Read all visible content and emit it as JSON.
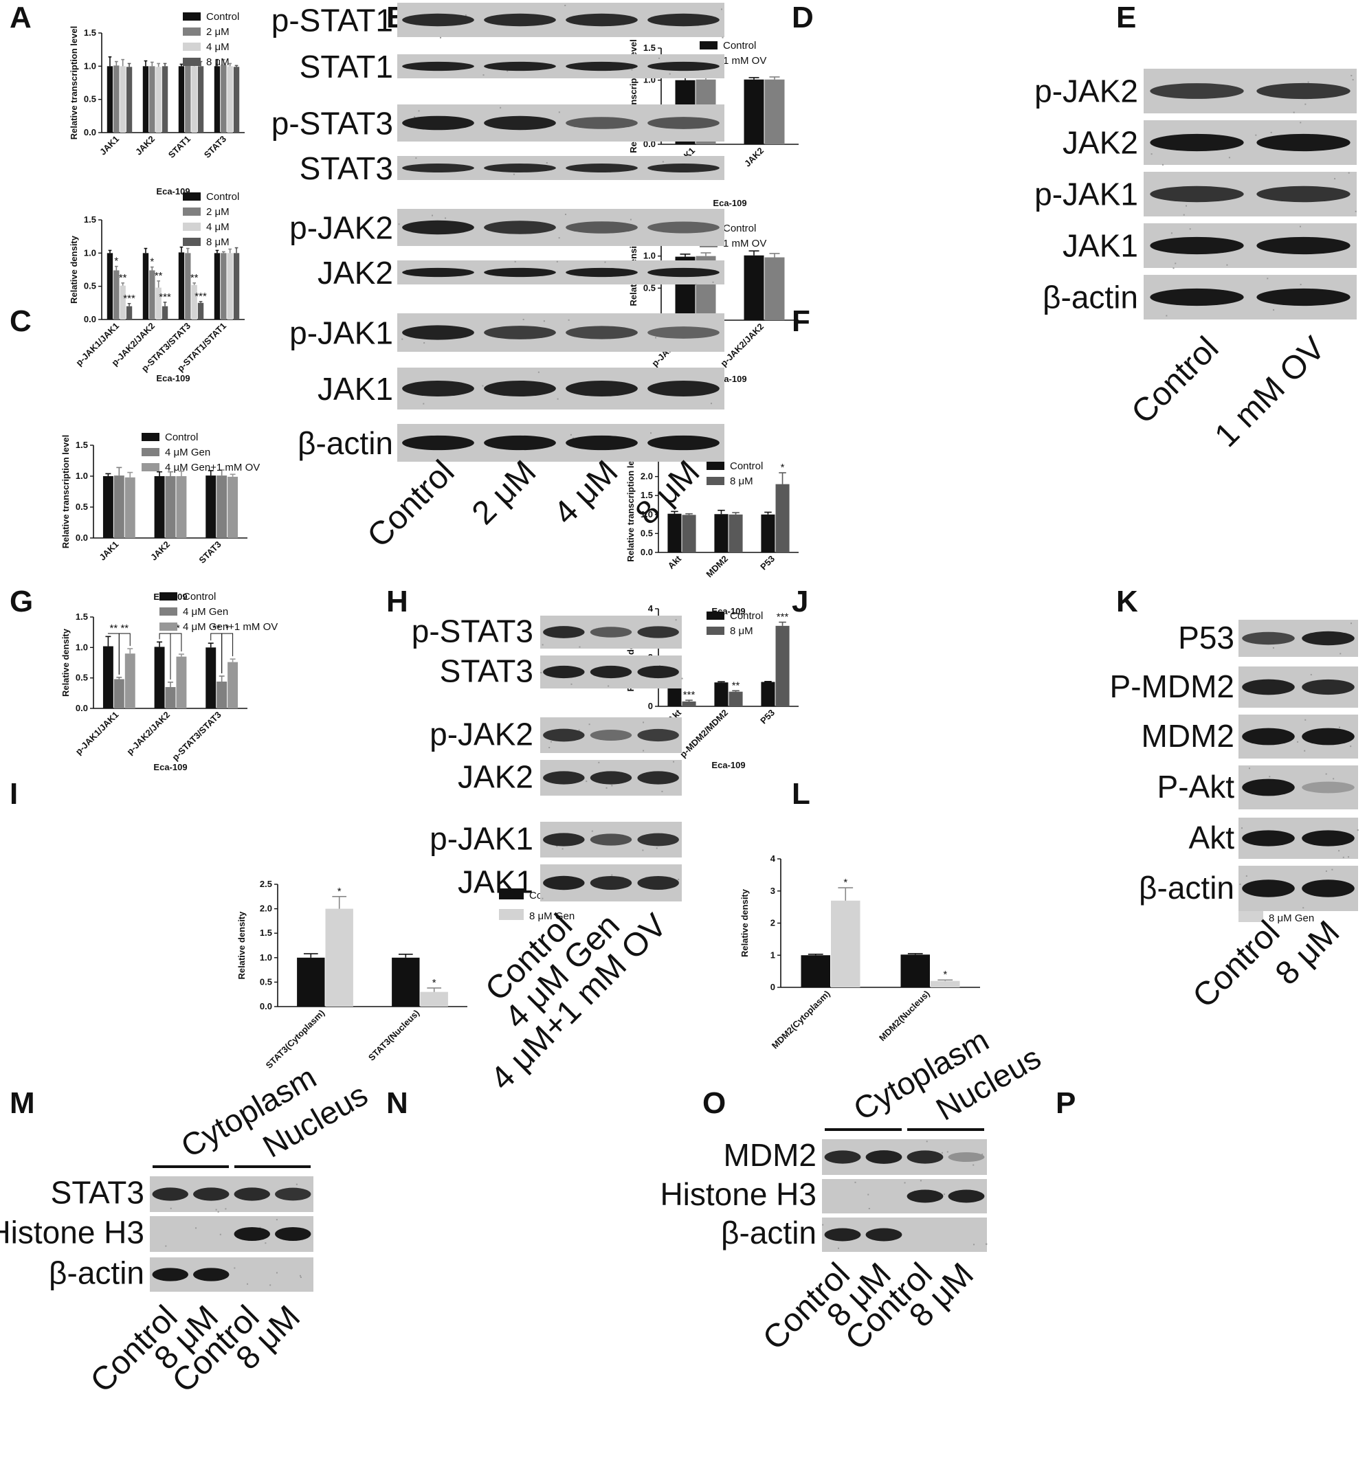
{
  "panels": {
    "A": "A",
    "B": "B",
    "C": "C",
    "D": "D",
    "E": "E",
    "F": "F",
    "G": "G",
    "H": "H",
    "I": "I",
    "J": "J",
    "K": "K",
    "L": "L",
    "M": "M",
    "N": "N",
    "O": "O",
    "P": "P"
  },
  "blots": {
    "B": {
      "bands": [
        "p-STAT1",
        "STAT1",
        "p-STAT3",
        "STAT3",
        "p-JAK2",
        "JAK2",
        "p-JAK1",
        "JAK1",
        "β-actin"
      ],
      "lanes": [
        "Control",
        "2 μM",
        "4 μM",
        "8 μM"
      ]
    },
    "E": {
      "bands": [
        "p-JAK2",
        "JAK2",
        "p-JAK1",
        "JAK1",
        "β-actin"
      ],
      "lanes": [
        "Control",
        "1 mM OV"
      ]
    },
    "H": {
      "bands": [
        "p-STAT3",
        "STAT3",
        "p-JAK2",
        "JAK2",
        "p-JAK1",
        "JAK1"
      ],
      "lanes": [
        "Control",
        "4 μM Gen",
        "4 μM+1 mM OV"
      ]
    },
    "K": {
      "bands": [
        "P53",
        "P-MDM2",
        "MDM2",
        "P-Akt",
        "Akt",
        "β-actin"
      ],
      "lanes": [
        "Control",
        "8 μM"
      ]
    },
    "M": {
      "groups": [
        "Cytoplasm",
        "Nucleus"
      ],
      "bands": [
        "STAT3",
        "Histone H3",
        "β-actin"
      ],
      "lanes": [
        "Control",
        "8 μM",
        "Control",
        "8 μM"
      ]
    },
    "O": {
      "groups": [
        "Cytoplasm",
        "Nucleus"
      ],
      "bands": [
        "MDM2",
        "Histone H3",
        "β-actin"
      ],
      "lanes": [
        "Control",
        "8 μM",
        "Control",
        "8 μM"
      ]
    }
  },
  "chart_data": [
    {
      "panel": "A",
      "type": "bar",
      "xlabel": "Eca-109",
      "ylabel": "Relative transcription level",
      "ylim": [
        0,
        1.5
      ],
      "yticks": [
        "0.0",
        "0.5",
        "1.0",
        "1.5"
      ],
      "categories": [
        "JAK1",
        "JAK2",
        "STAT1",
        "STAT3"
      ],
      "series": [
        {
          "name": "Control",
          "color": "#111111",
          "values": [
            1.0,
            1.0,
            1.0,
            1.0
          ],
          "err": [
            0.14,
            0.08,
            0.03,
            0.1
          ]
        },
        {
          "name": "2 μM",
          "color": "#808080",
          "values": [
            1.01,
            1.0,
            1.01,
            1.02
          ],
          "err": [
            0.06,
            0.06,
            0.05,
            0.08
          ]
        },
        {
          "name": "4 μM",
          "color": "#d3d3d3",
          "values": [
            1.0,
            0.99,
            1.0,
            1.0
          ],
          "err": [
            0.1,
            0.05,
            0.07,
            0.04
          ]
        },
        {
          "name": "8 μM",
          "color": "#595959",
          "values": [
            0.99,
            1.0,
            1.0,
            0.99
          ],
          "err": [
            0.05,
            0.04,
            0.07,
            0.02
          ]
        }
      ],
      "sig": []
    },
    {
      "panel": "C",
      "type": "bar",
      "xlabel": "Eca-109",
      "ylabel": "Relative density",
      "ylim": [
        0,
        1.5
      ],
      "yticks": [
        "0.0",
        "0.5",
        "1.0",
        "1.5"
      ],
      "categories": [
        "p-JAK1/JAK1",
        "p-JAK2/JAK2",
        "p-STAT3/STAT3",
        "p-STAT1/STAT1"
      ],
      "series": [
        {
          "name": "Control",
          "color": "#111111",
          "values": [
            1.0,
            1.0,
            1.01,
            1.0
          ],
          "err": [
            0.04,
            0.07,
            0.08,
            0.04
          ]
        },
        {
          "name": "2 μM",
          "color": "#808080",
          "values": [
            0.74,
            0.74,
            1.0,
            1.0
          ],
          "err": [
            0.06,
            0.05,
            0.07,
            0.02
          ]
        },
        {
          "name": "4 μM",
          "color": "#d3d3d3",
          "values": [
            0.51,
            0.48,
            0.52,
            1.0
          ],
          "err": [
            0.04,
            0.1,
            0.03,
            0.06
          ]
        },
        {
          "name": "8 μM",
          "color": "#595959",
          "values": [
            0.2,
            0.2,
            0.25,
            1.0
          ],
          "err": [
            0.04,
            0.06,
            0.02,
            0.08
          ]
        }
      ],
      "sig": [
        [
          "",
          "*",
          "**",
          "***"
        ],
        [
          "",
          "*",
          "**",
          "***"
        ],
        [
          "",
          "",
          "**",
          "***"
        ],
        [
          "",
          "",
          "",
          ""
        ]
      ]
    },
    {
      "panel": "D",
      "type": "bar",
      "xlabel": "Eca-109",
      "ylabel": "Relative transcription level",
      "ylim": [
        0,
        1.5
      ],
      "yticks": [
        "0.0",
        "0.5",
        "1.0",
        "1.5"
      ],
      "categories": [
        "JAK1",
        "JAK2"
      ],
      "series": [
        {
          "name": "Control",
          "color": "#111111",
          "values": [
            1.0,
            1.01
          ],
          "err": [
            0.08,
            0.03
          ]
        },
        {
          "name": "1 mM OV",
          "color": "#808080",
          "values": [
            1.01,
            1.01
          ],
          "err": [
            0.04,
            0.04
          ]
        }
      ],
      "sig": []
    },
    {
      "panel": "F",
      "type": "bar",
      "xlabel": "Eca-109",
      "ylabel": "Relative density",
      "ylim": [
        0,
        1.5
      ],
      "yticks": [
        "0.0",
        "0.5",
        "1.0",
        "1.5"
      ],
      "categories": [
        "p-JAK1/JAK1",
        "p-JAK2/JAK2"
      ],
      "series": [
        {
          "name": "Control",
          "color": "#111111",
          "values": [
            0.99,
            1.01
          ],
          "err": [
            0.04,
            0.07
          ]
        },
        {
          "name": "1 mM OV",
          "color": "#808080",
          "values": [
            1.0,
            0.98
          ],
          "err": [
            0.05,
            0.06
          ]
        }
      ],
      "sig": []
    },
    {
      "panel": "G",
      "type": "bar",
      "xlabel": "Eca-109",
      "ylabel": "Relative transcription level",
      "ylim": [
        0,
        1.5
      ],
      "yticks": [
        "0.0",
        "0.5",
        "1.0",
        "1.5"
      ],
      "categories": [
        "JAK1",
        "JAK2",
        "STAT3"
      ],
      "series": [
        {
          "name": "Control",
          "color": "#111111",
          "values": [
            1.0,
            1.0,
            1.01
          ],
          "err": [
            0.04,
            0.07,
            0.08
          ]
        },
        {
          "name": "4 μM Gen",
          "color": "#808080",
          "values": [
            1.01,
            1.0,
            1.01
          ],
          "err": [
            0.13,
            0.07,
            0.09
          ]
        },
        {
          "name": "4 μM Gen+1 mM OV",
          "color": "#989898",
          "values": [
            0.98,
            1.0,
            0.99
          ],
          "err": [
            0.08,
            0.08,
            0.04
          ]
        }
      ],
      "sig": []
    },
    {
      "panel": "I",
      "type": "bar",
      "xlabel": "Eca-109",
      "ylabel": "Relative density",
      "ylim": [
        0,
        1.5
      ],
      "yticks": [
        "0.0",
        "0.5",
        "1.0",
        "1.5"
      ],
      "categories": [
        "p-JAK1/JAK1",
        "p-JAK2/JAK2",
        "p-STAT3/STAT3"
      ],
      "series": [
        {
          "name": "Control",
          "color": "#111111",
          "values": [
            1.02,
            1.01,
            1.0
          ],
          "err": [
            0.16,
            0.08,
            0.07
          ]
        },
        {
          "name": "4 μM Gen",
          "color": "#808080",
          "values": [
            0.48,
            0.35,
            0.44
          ],
          "err": [
            0.03,
            0.08,
            0.09
          ]
        },
        {
          "name": "4 μM Gen+1 mM OV",
          "color": "#989898",
          "values": [
            0.9,
            0.85,
            0.76
          ],
          "err": [
            0.08,
            0.04,
            0.05
          ]
        }
      ],
      "brackets": [
        {
          "cat": 0,
          "from": 0,
          "to": 1,
          "label": "**"
        },
        {
          "cat": 0,
          "from": 1,
          "to": 2,
          "label": "**"
        },
        {
          "cat": 1,
          "from": 0,
          "to": 1,
          "label": "**"
        },
        {
          "cat": 1,
          "from": 1,
          "to": 2,
          "label": "**"
        },
        {
          "cat": 2,
          "from": 0,
          "to": 1,
          "label": "**"
        },
        {
          "cat": 2,
          "from": 1,
          "to": 2,
          "label": "*"
        }
      ],
      "sig": []
    },
    {
      "panel": "J",
      "type": "bar",
      "xlabel": "Eca-109",
      "ylabel": "Relative transcription level",
      "ylim": [
        0,
        2.5
      ],
      "yticks": [
        "0.0",
        "0.5",
        "1.0",
        "1.5",
        "2.0",
        "2.5"
      ],
      "categories": [
        "Akt",
        "MDM2",
        "P53"
      ],
      "series": [
        {
          "name": "Control",
          "color": "#111111",
          "values": [
            1.02,
            1.01,
            1.0
          ],
          "err": [
            0.06,
            0.1,
            0.06
          ]
        },
        {
          "name": "8 μM",
          "color": "#595959",
          "values": [
            0.99,
            1.0,
            1.8
          ],
          "err": [
            0.03,
            0.05,
            0.3
          ]
        }
      ],
      "sig": [
        [
          "",
          ""
        ],
        [
          "",
          ""
        ],
        [
          "",
          "*"
        ]
      ]
    },
    {
      "panel": "L",
      "type": "bar",
      "xlabel": "Eca-109",
      "ylabel": "Relative density",
      "ylim": [
        0,
        4
      ],
      "yticks": [
        "0",
        "1",
        "2",
        "3",
        "4"
      ],
      "categories": [
        "p-Akt/Akt",
        "p-MDM2/MDM2",
        "P53"
      ],
      "series": [
        {
          "name": "Control",
          "color": "#111111",
          "values": [
            0.98,
            0.98,
            1.0
          ],
          "err": [
            0.06,
            0.03,
            0.02
          ]
        },
        {
          "name": "8 μM",
          "color": "#595959",
          "values": [
            0.2,
            0.6,
            3.3
          ],
          "err": [
            0.05,
            0.04,
            0.15
          ]
        }
      ],
      "sig": [
        [
          "",
          "***"
        ],
        [
          "",
          "**"
        ],
        [
          "",
          "***"
        ]
      ]
    },
    {
      "panel": "N",
      "type": "bar",
      "xlabel": "",
      "ylabel": "Relative density",
      "ylim": [
        0,
        2.5
      ],
      "yticks": [
        "0.0",
        "0.5",
        "1.0",
        "1.5",
        "2.0",
        "2.5"
      ],
      "categories": [
        "STAT3(Cytoplasm)",
        "STAT3(Nucleus)"
      ],
      "series": [
        {
          "name": "Control",
          "color": "#111111",
          "values": [
            1.0,
            1.0
          ],
          "err": [
            0.08,
            0.07
          ]
        },
        {
          "name": "8 μM Gen",
          "color": "#d3d3d3",
          "values": [
            2.0,
            0.3
          ],
          "err": [
            0.25,
            0.08
          ]
        }
      ],
      "sig": [
        [
          "",
          "*"
        ],
        [
          "",
          "*"
        ]
      ]
    },
    {
      "panel": "P",
      "type": "bar",
      "xlabel": "",
      "ylabel": "Relative density",
      "ylim": [
        0,
        4
      ],
      "yticks": [
        "0",
        "1",
        "2",
        "3",
        "4"
      ],
      "categories": [
        "MDM2(Cytoplasm)",
        "MDM2(Nucleus)"
      ],
      "series": [
        {
          "name": "Control",
          "color": "#111111",
          "values": [
            1.0,
            1.02
          ],
          "err": [
            0.03,
            0.03
          ]
        },
        {
          "name": "8 μM Gen",
          "color": "#d3d3d3",
          "values": [
            2.7,
            0.2
          ],
          "err": [
            0.4,
            0.03
          ]
        }
      ],
      "sig": [
        [
          "",
          "*"
        ],
        [
          "",
          "*"
        ]
      ]
    }
  ]
}
